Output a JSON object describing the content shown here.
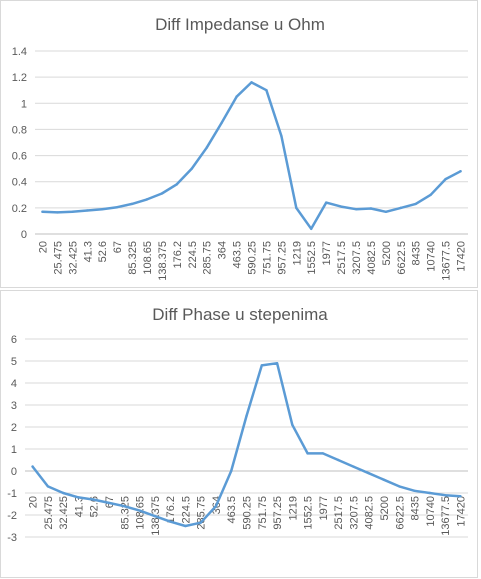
{
  "chart_data": [
    {
      "type": "line",
      "title": "Diff Impedanse u Ohm",
      "xlabel": "",
      "ylabel": "",
      "ylim": [
        0,
        1.4
      ],
      "yticks": [
        "0",
        "0.2",
        "0.4",
        "0.6",
        "0.8",
        "1",
        "1.2",
        "1.4"
      ],
      "categories": [
        "20",
        "25.475",
        "32.425",
        "41.3",
        "52.6",
        "67",
        "85.325",
        "108.65",
        "138.375",
        "176.2",
        "224.5",
        "285.75",
        "364",
        "463.5",
        "590.25",
        "751.75",
        "957.25",
        "1219",
        "1552.5",
        "1977",
        "2517.5",
        "3207.5",
        "4082.5",
        "5200",
        "6622.5",
        "8435",
        "10740",
        "13677.5",
        "17420"
      ],
      "grid": true,
      "legend": "none",
      "color": "#5b9bd5",
      "series": [
        {
          "values": [
            0.17,
            0.165,
            0.17,
            0.18,
            0.19,
            0.205,
            0.23,
            0.265,
            0.31,
            0.38,
            0.5,
            0.66,
            0.85,
            1.05,
            1.16,
            1.1,
            0.75,
            0.2,
            0.04,
            0.24,
            0.21,
            0.19,
            0.195,
            0.17,
            0.2,
            0.23,
            0.3,
            0.42,
            0.48
          ]
        }
      ]
    },
    {
      "type": "line",
      "title": "Diff Phase u stepenima",
      "xlabel": "",
      "ylabel": "",
      "ylim": [
        -3,
        6
      ],
      "yticks": [
        "-3",
        "-2",
        "-1",
        "0",
        "1",
        "2",
        "3",
        "4",
        "5",
        "6"
      ],
      "categories": [
        "20",
        "25.475",
        "32.425",
        "41.3",
        "52.6",
        "67",
        "85.325",
        "108.65",
        "138.375",
        "176.2",
        "224.5",
        "285.75",
        "364",
        "463.5",
        "590.25",
        "751.75",
        "957.25",
        "1219",
        "1552.5",
        "1977",
        "2517.5",
        "3207.5",
        "4082.5",
        "5200",
        "6622.5",
        "8435",
        "10740",
        "13677.5",
        "17420"
      ],
      "grid": true,
      "legend": "none",
      "color": "#5b9bd5",
      "series": [
        {
          "values": [
            0.2,
            -0.7,
            -1.0,
            -1.2,
            -1.3,
            -1.45,
            -1.6,
            -1.8,
            -2.05,
            -2.3,
            -2.5,
            -2.35,
            -1.6,
            0.0,
            2.5,
            4.8,
            4.9,
            2.1,
            0.8,
            0.8,
            0.5,
            0.2,
            -0.1,
            -0.4,
            -0.7,
            -0.9,
            -1.0,
            -1.1,
            -1.15
          ]
        }
      ]
    }
  ]
}
